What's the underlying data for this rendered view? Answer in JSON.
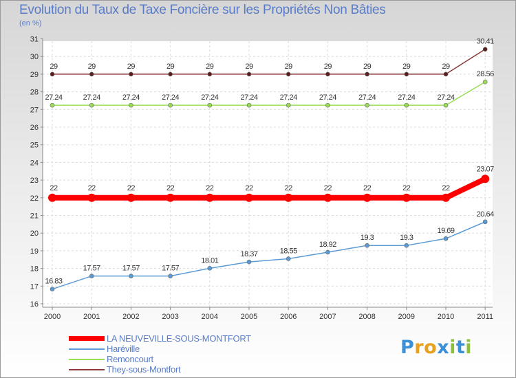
{
  "header": {
    "title": "Evolution du Taux de Taxe Foncière sur les Propriétés Non Bâties",
    "subtitle": "(en %)"
  },
  "logo": {
    "letters": [
      "P",
      "r",
      "o",
      "x",
      "i",
      "t",
      "i"
    ],
    "colors": [
      "#3a8fd6",
      "#e8a020",
      "#e8a020",
      "#3a8fd6",
      "#8cc03c",
      "#3a8fd6",
      "#8cc03c"
    ]
  },
  "chart_data": {
    "type": "line",
    "title": "Evolution du Taux de Taxe Foncière sur les Propriétés Non Bâties",
    "ylabel": "(en %)",
    "xlabel": "",
    "ylim": [
      16,
      31
    ],
    "grid": true,
    "legend_position": "bottom-left",
    "categories": [
      "2000",
      "2001",
      "2002",
      "2003",
      "2004",
      "2005",
      "2006",
      "2007",
      "2008",
      "2009",
      "2010",
      "2011"
    ],
    "y_ticks": [
      16,
      17,
      18,
      19,
      20,
      21,
      22,
      23,
      24,
      25,
      26,
      27,
      28,
      29,
      30,
      31
    ],
    "series": [
      {
        "name": "LA NEUVEVILLE-SOUS-MONTFORT",
        "color": "#ff0000",
        "emphasis": "thick",
        "values": [
          22,
          22,
          22,
          22,
          22,
          22,
          22,
          22,
          22,
          22,
          22,
          23.07
        ],
        "labels": [
          "22",
          "22",
          "22",
          "22",
          "22",
          "22",
          "22",
          "22",
          "22",
          "22",
          "22",
          "23.07"
        ]
      },
      {
        "name": "Haréville",
        "color": "#5b9bd5",
        "emphasis": "thin",
        "values": [
          16.83,
          17.57,
          17.57,
          17.57,
          18.01,
          18.37,
          18.55,
          18.92,
          19.3,
          19.3,
          19.69,
          20.64
        ],
        "labels": [
          "16.83",
          "17.57",
          "17.57",
          "17.57",
          "18.01",
          "18.37",
          "18.55",
          "18.92",
          "19.3",
          "19.3",
          "19.69",
          "20.64"
        ]
      },
      {
        "name": "Remoncourt",
        "color": "#99dd55",
        "emphasis": "thin",
        "values": [
          27.24,
          27.24,
          27.24,
          27.24,
          27.24,
          27.24,
          27.24,
          27.24,
          27.24,
          27.24,
          27.24,
          28.56
        ],
        "labels": [
          "27.24",
          "27.24",
          "27.24",
          "27.24",
          "27.24",
          "27.24",
          "27.24",
          "27.24",
          "27.24",
          "27.24",
          "27.24",
          "28.56"
        ]
      },
      {
        "name": "They-sous-Montfort",
        "color": "#8b3a3a",
        "emphasis": "thin",
        "values": [
          29,
          29,
          29,
          29,
          29,
          29,
          29,
          29,
          29,
          29,
          29,
          30.41
        ],
        "labels": [
          "29",
          "29",
          "29",
          "29",
          "29",
          "29",
          "29",
          "29",
          "29",
          "29",
          "29",
          "30.41"
        ]
      }
    ]
  }
}
